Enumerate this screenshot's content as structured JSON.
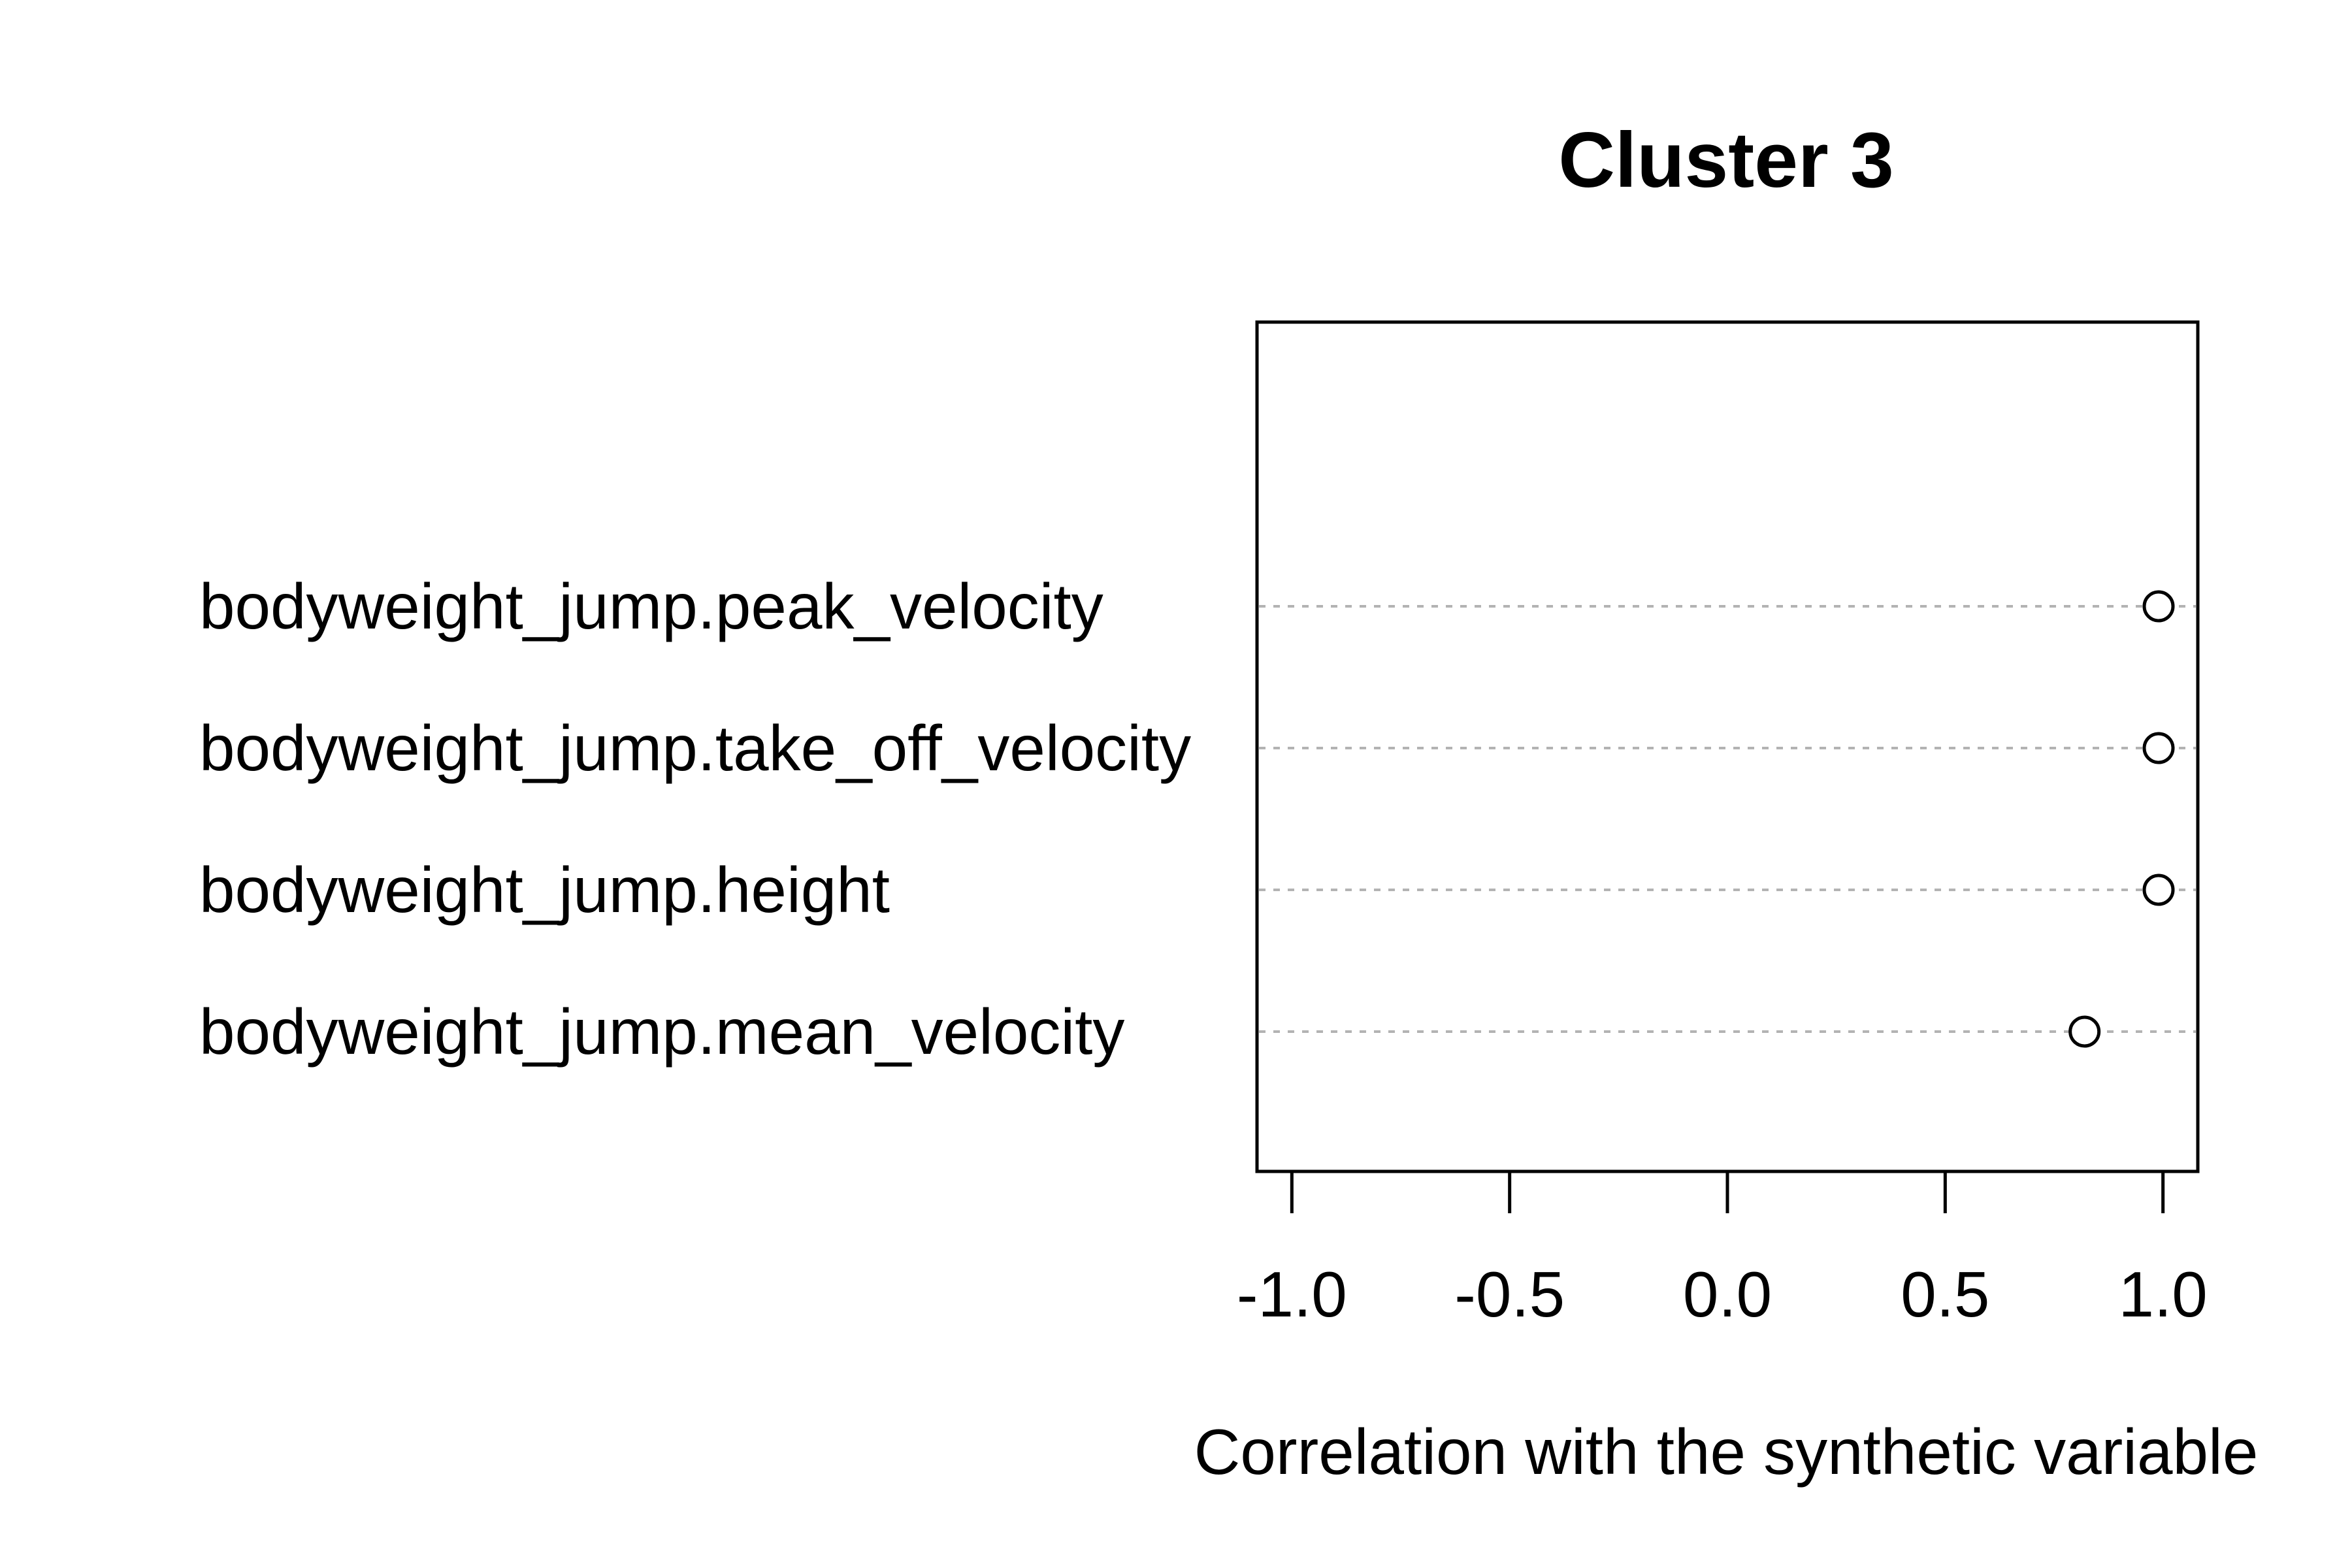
{
  "chart_data": {
    "type": "scatter",
    "title": "Cluster 3",
    "xlabel": "Correlation with the synthetic variable",
    "ylabel": "",
    "xlim": [
      -1.08,
      1.08
    ],
    "x_ticks": [
      -1.0,
      -0.5,
      0.0,
      0.5,
      1.0
    ],
    "x_tick_labels": [
      "-1.0",
      "-0.5",
      "0.0",
      "0.5",
      "1.0"
    ],
    "grid": false,
    "categories": [
      "bodyweight_jump.peak_velocity",
      "bodyweight_jump.take_off_velocity",
      "bodyweight_jump.height",
      "bodyweight_jump.mean_velocity"
    ],
    "values": [
      0.99,
      0.99,
      0.99,
      0.82
    ],
    "colors": {
      "marker": "#000000",
      "guide": "#b3b3b3"
    }
  }
}
